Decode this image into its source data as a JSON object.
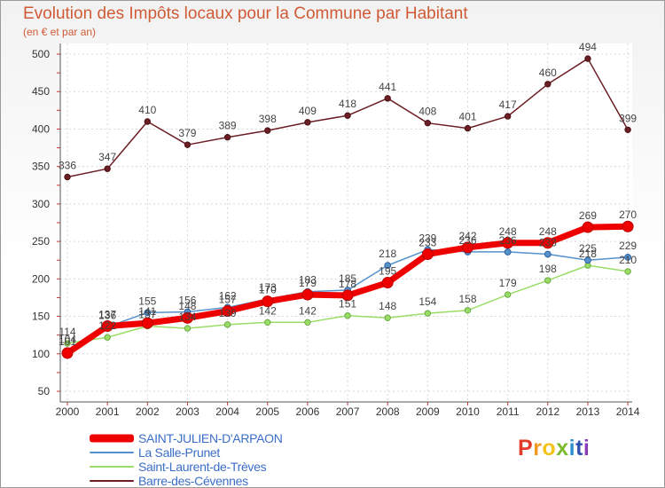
{
  "chart_data": {
    "type": "line",
    "title": "Evolution des Impôts locaux pour la Commune par Habitant",
    "subtitle": "(en € et par an)",
    "xlabel": "",
    "ylabel": "",
    "ylim": [
      50,
      500
    ],
    "yticks": [
      50,
      100,
      150,
      200,
      250,
      300,
      350,
      400,
      450,
      500
    ],
    "categories": [
      "2000",
      "2001",
      "2002",
      "2003",
      "2004",
      "2005",
      "2006",
      "2007",
      "2008",
      "2009",
      "2010",
      "2011",
      "2012",
      "2013",
      "2014"
    ],
    "grid": true,
    "series": [
      {
        "name": "Barre-des-Cévennes",
        "color": "#6b1e24",
        "values": [
          336,
          347,
          410,
          379,
          389,
          398,
          409,
          418,
          441,
          408,
          401,
          417,
          460,
          494,
          399
        ]
      },
      {
        "name": "Saint-Laurent-de-Trèves",
        "color": "#99dd66",
        "values": [
          114,
          122,
          137,
          134,
          139,
          142,
          142,
          151,
          148,
          154,
          158,
          179,
          198,
          218,
          210
        ]
      },
      {
        "name": "La Salle-Prunet",
        "color": "#5592cc",
        "values": [
          104,
          136,
          155,
          156,
          162,
          173,
          183,
          185,
          218,
          239,
          236,
          236,
          233,
          225,
          229
        ]
      },
      {
        "name": "SAINT-JULIEN-D'ARPAON",
        "color": "#ee0000",
        "values": [
          101,
          137,
          141,
          148,
          157,
          170,
          179,
          178,
          195,
          233,
          242,
          248,
          248,
          269,
          270
        ]
      }
    ],
    "legend": [
      "SAINT-JULIEN-D'ARPAON",
      "La Salle-Prunet",
      "Saint-Laurent-de-Trèves",
      "Barre-des-Cévennes"
    ]
  },
  "branding": {
    "logo_letters": [
      "P",
      "r",
      "o",
      "x",
      "i",
      "t",
      "i"
    ],
    "logo_colors": [
      "#e23a2a",
      "#f29a1f",
      "#f4c31b",
      "#7dbb2e",
      "#2e90d0",
      "#3050b0",
      "#8a3cb8"
    ]
  }
}
